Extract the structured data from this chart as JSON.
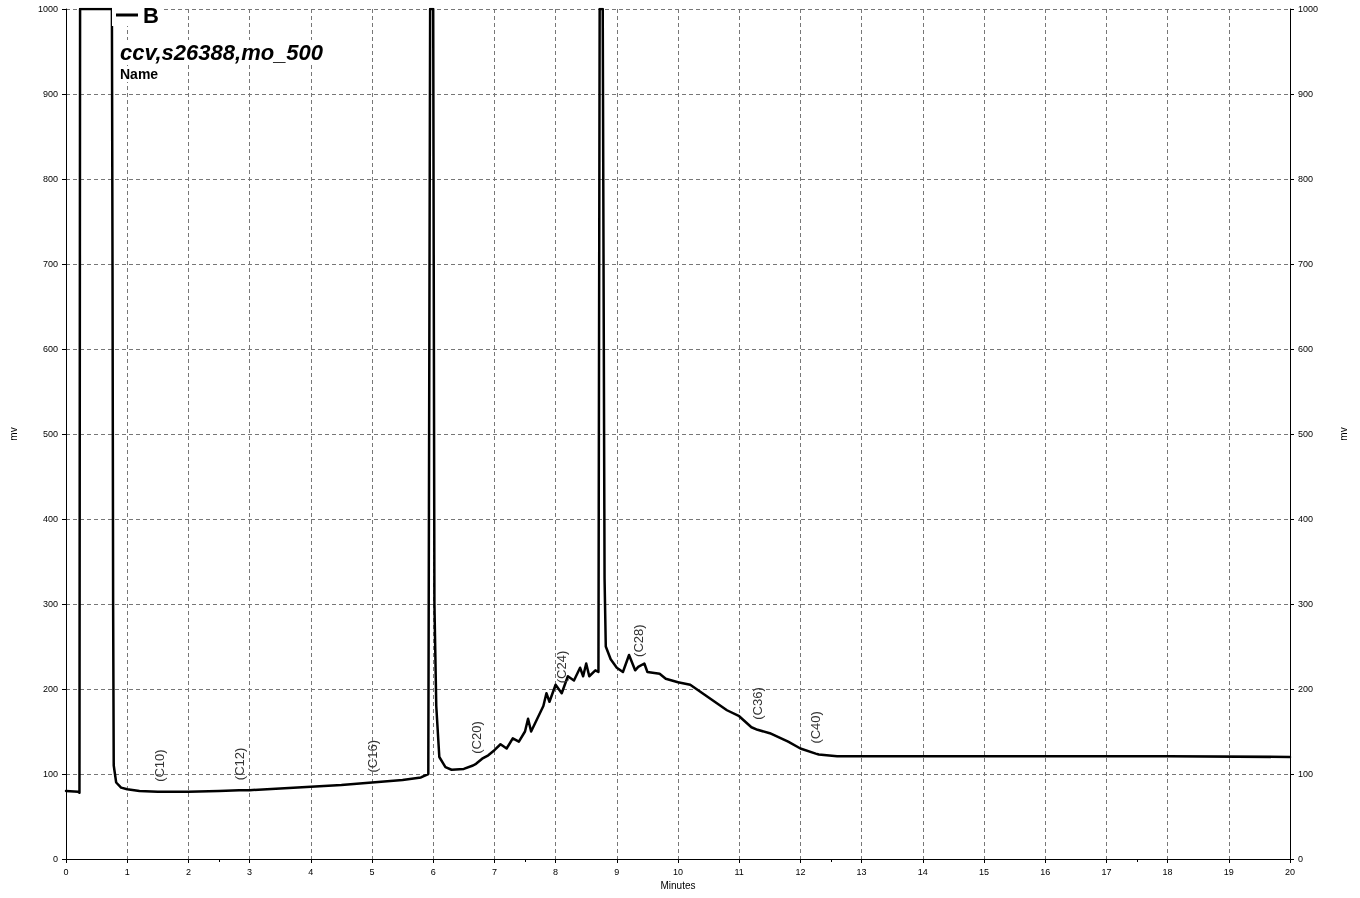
{
  "chart_data": {
    "type": "line",
    "xlabel": "Minutes",
    "ylabel": "mv",
    "y2label": "mv",
    "xlim": [
      0,
      20
    ],
    "xticks": [
      0,
      1,
      2,
      3,
      4,
      5,
      6,
      7,
      8,
      9,
      10,
      11,
      12,
      13,
      14,
      15,
      16,
      17,
      18,
      19,
      20
    ],
    "ylim": [
      0,
      1000
    ],
    "yticks": [
      0,
      100,
      200,
      300,
      400,
      500,
      600,
      700,
      800,
      900,
      1000
    ],
    "y2lim": [
      0,
      1000
    ],
    "y2ticks": [
      0,
      100,
      200,
      300,
      400,
      500,
      600,
      700,
      800,
      900,
      1000
    ],
    "grid": true,
    "legend": "top left",
    "marker": "none",
    "line_style": "solid",
    "series": [
      {
        "name": "B",
        "color": "#000000",
        "x": [
          0,
          0.2,
          0.22,
          0.23,
          0.75,
          0.76,
          0.77,
          0.78,
          0.82,
          0.9,
          1.0,
          1.2,
          1.5,
          1.53,
          2,
          2.5,
          2.83,
          3,
          3.5,
          4,
          4.5,
          5,
          5.5,
          5.8,
          5.92,
          5.95,
          6.0,
          6.02,
          6.05,
          6.1,
          6.2,
          6.3,
          6.5,
          6.65,
          6.7,
          6.8,
          6.9,
          7.0,
          7.1,
          7.2,
          7.3,
          7.4,
          7.5,
          7.55,
          7.6,
          7.7,
          7.8,
          7.85,
          7.9,
          8.0,
          8.1,
          8.2,
          8.3,
          8.4,
          8.45,
          8.5,
          8.55,
          8.65,
          8.7,
          8.72,
          8.77,
          8.8,
          8.82,
          8.9,
          9.0,
          9.1,
          9.2,
          9.3,
          9.35,
          9.45,
          9.5,
          9.7,
          9.8,
          10.0,
          10.2,
          10.4,
          10.6,
          10.8,
          11.0,
          11.2,
          11.3,
          11.5,
          11.8,
          12.0,
          12.25,
          12.3,
          12.6,
          13,
          15,
          18,
          20
        ],
        "values": [
          80,
          79,
          78,
          1000,
          1000,
          700,
          300,
          110,
          90,
          84,
          82,
          80,
          79,
          79,
          79,
          80,
          81,
          81,
          83,
          85,
          87,
          90,
          93,
          96,
          100,
          1000,
          1000,
          300,
          180,
          120,
          108,
          105,
          106,
          110,
          112,
          118,
          122,
          128,
          135,
          130,
          142,
          138,
          150,
          165,
          150,
          165,
          180,
          195,
          185,
          205,
          195,
          215,
          210,
          225,
          215,
          230,
          215,
          222,
          220,
          1000,
          1000,
          330,
          250,
          235,
          225,
          220,
          240,
          222,
          226,
          230,
          220,
          218,
          212,
          208,
          205,
          195,
          185,
          175,
          168,
          155,
          152,
          148,
          138,
          130,
          124,
          123,
          121,
          121,
          121,
          121,
          120
        ],
        "value_labels": [
          null,
          null,
          null,
          null,
          null,
          null,
          null,
          null,
          null,
          null,
          null,
          null,
          null,
          "(C10)",
          null,
          null,
          "(C12)",
          null,
          null,
          null,
          null,
          "(C16)",
          null,
          null,
          null,
          null,
          null,
          null,
          null,
          null,
          null,
          null,
          null,
          null,
          "(C20)",
          null,
          null,
          null,
          null,
          null,
          null,
          null,
          null,
          null,
          null,
          null,
          null,
          null,
          null,
          null,
          "(C24)",
          null,
          null,
          null,
          null,
          null,
          null,
          null,
          null,
          null,
          null,
          null,
          null,
          null,
          null,
          null,
          null,
          null,
          "(C28)",
          null,
          null,
          null,
          null,
          null,
          null,
          null,
          null,
          null,
          null,
          null,
          "(C36)",
          null,
          null,
          null,
          "(C40)",
          null,
          null,
          null,
          null,
          null,
          null
        ]
      }
    ],
    "annotations": [
      "ccv,s26388,mo_500",
      "Name"
    ]
  }
}
